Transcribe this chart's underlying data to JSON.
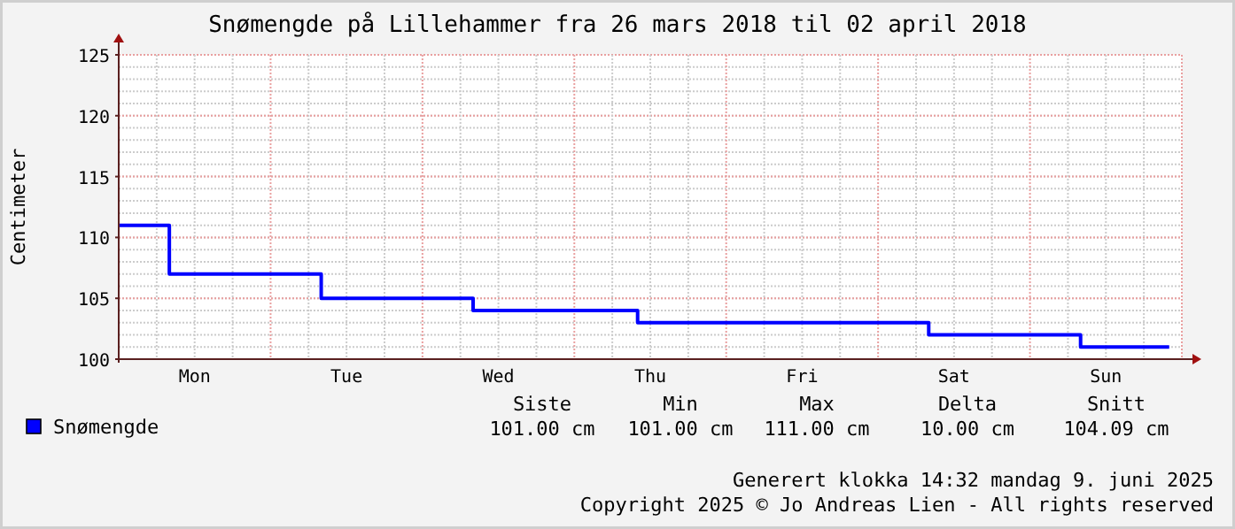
{
  "chart_data": {
    "type": "step",
    "title": "Snømengde på Lillehammer fra 26 mars 2018 til 02 april 2018",
    "ylabel": "Centimeter",
    "categories": [
      null,
      null,
      null,
      null,
      null,
      null,
      "Mon",
      null,
      null,
      null,
      null,
      null,
      null,
      null,
      null,
      null,
      null,
      null,
      "Tue",
      null,
      null,
      null,
      null,
      null,
      null,
      null,
      null,
      null,
      null,
      null,
      "Wed",
      null,
      null,
      null,
      null,
      null,
      null,
      null,
      null,
      null,
      null,
      null,
      "Thu",
      null,
      null,
      null,
      null,
      null,
      null,
      null,
      null,
      null,
      null,
      null,
      "Fri",
      null,
      null,
      null,
      null,
      null,
      null,
      null,
      null,
      null,
      null,
      null,
      "Sat",
      null,
      null,
      null,
      null,
      null,
      null,
      null,
      null,
      null,
      null,
      null,
      "Sun",
      null,
      null,
      null,
      null,
      null
    ],
    "series": [
      {
        "name": "Snømengde",
        "color": "#0000ff",
        "values": [
          111,
          111,
          111,
          111,
          107,
          107,
          107,
          107,
          107,
          107,
          107,
          107,
          107,
          107,
          107,
          107,
          105,
          105,
          105,
          105,
          105,
          105,
          105,
          105,
          105,
          105,
          105,
          105,
          104,
          104,
          104,
          104,
          104,
          104,
          104,
          104,
          104,
          104,
          104,
          104,
          104,
          103,
          103,
          103,
          103,
          103,
          103,
          103,
          103,
          103,
          103,
          103,
          103,
          103,
          103,
          103,
          103,
          103,
          103,
          103,
          103,
          103,
          103,
          103,
          102,
          102,
          102,
          102,
          102,
          102,
          102,
          102,
          102,
          102,
          102,
          102,
          101,
          101,
          101,
          101,
          101,
          101,
          101,
          101
        ]
      }
    ],
    "ylim": [
      100,
      125
    ],
    "yticks": [
      100,
      105,
      110,
      115,
      120,
      125
    ],
    "grid": true,
    "legend": "bottom left",
    "annotations": [
      "Siste",
      "Min",
      "Max",
      "Delta",
      "Snitt",
      "101.00 cm",
      "101.00 cm",
      "111.00 cm",
      "10.00 cm",
      "104.09 cm",
      "Generert klokka 14:32 mandag 9. juni 2025",
      "Copyright 2025 © Jo Andreas Lien - All rights reserved"
    ]
  }
}
